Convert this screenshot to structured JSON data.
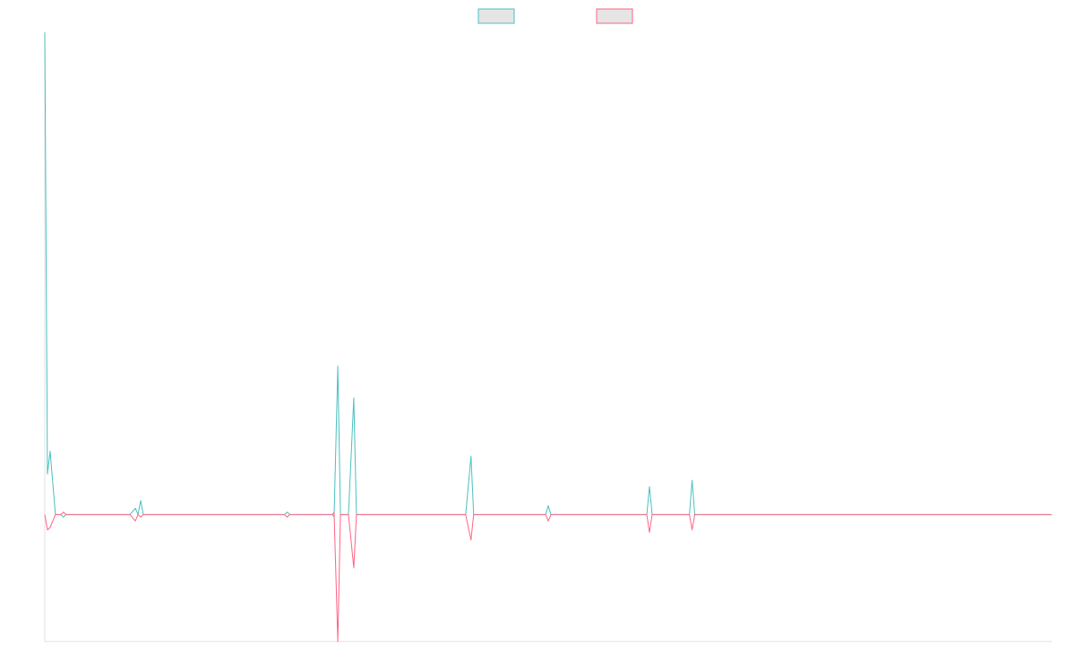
{
  "chart_data": {
    "type": "line",
    "title": "",
    "xlabel": "",
    "ylabel": "",
    "legend_position": "top-center",
    "x_count": 190,
    "ylim": [
      -1,
      3.8
    ],
    "grid": false,
    "series": [
      {
        "name": "",
        "color": "#4bc0c0",
        "fill": "#e5e5e5",
        "points": [
          [
            0,
            3.8
          ],
          [
            0.5,
            0.32
          ],
          [
            1,
            0.5
          ],
          [
            2,
            0
          ],
          [
            3,
            0
          ],
          [
            3.5,
            -0.02
          ],
          [
            4,
            0
          ],
          [
            16,
            0
          ],
          [
            17,
            0.05
          ],
          [
            17.5,
            0
          ],
          [
            18,
            0.11
          ],
          [
            18.5,
            0
          ],
          [
            27,
            0
          ],
          [
            45,
            0
          ],
          [
            45.5,
            0.02
          ],
          [
            46,
            0
          ],
          [
            54,
            0
          ],
          [
            54.3,
            -0.02
          ],
          [
            55,
            1.17
          ],
          [
            55.5,
            0
          ],
          [
            57,
            0
          ],
          [
            58,
            0.92
          ],
          [
            58.5,
            0
          ],
          [
            79,
            0
          ],
          [
            80,
            0.46
          ],
          [
            80.5,
            0
          ],
          [
            94,
            0
          ],
          [
            94.5,
            0.07
          ],
          [
            95,
            0
          ],
          [
            113,
            0
          ],
          [
            113.5,
            0.22
          ],
          [
            114,
            0
          ],
          [
            121,
            0
          ],
          [
            121.5,
            0.27
          ],
          [
            122,
            0
          ],
          [
            147,
            0
          ],
          [
            189,
            0
          ]
        ]
      },
      {
        "name": "",
        "color": "#ff6384",
        "fill": "#e5e5e5",
        "points": [
          [
            0,
            0
          ],
          [
            0.5,
            -0.12
          ],
          [
            1,
            -0.1
          ],
          [
            2,
            0
          ],
          [
            3,
            0
          ],
          [
            3.5,
            0.02
          ],
          [
            4,
            0
          ],
          [
            16,
            0
          ],
          [
            17,
            -0.05
          ],
          [
            17.5,
            0
          ],
          [
            18,
            -0.02
          ],
          [
            18.5,
            0
          ],
          [
            27,
            0
          ],
          [
            45,
            0
          ],
          [
            45.5,
            -0.02
          ],
          [
            46,
            0
          ],
          [
            54,
            0
          ],
          [
            54.3,
            0.02
          ],
          [
            55,
            -1.0
          ],
          [
            55.5,
            0
          ],
          [
            57,
            0
          ],
          [
            58,
            -0.42
          ],
          [
            58.5,
            0
          ],
          [
            79,
            0
          ],
          [
            80,
            -0.2
          ],
          [
            80.5,
            0
          ],
          [
            94,
            0
          ],
          [
            94.5,
            -0.05
          ],
          [
            95,
            0
          ],
          [
            113,
            0
          ],
          [
            113.5,
            -0.14
          ],
          [
            114,
            0
          ],
          [
            121,
            0
          ],
          [
            121.5,
            -0.12
          ],
          [
            122,
            0
          ],
          [
            147,
            0
          ],
          [
            189,
            0
          ]
        ]
      }
    ]
  }
}
